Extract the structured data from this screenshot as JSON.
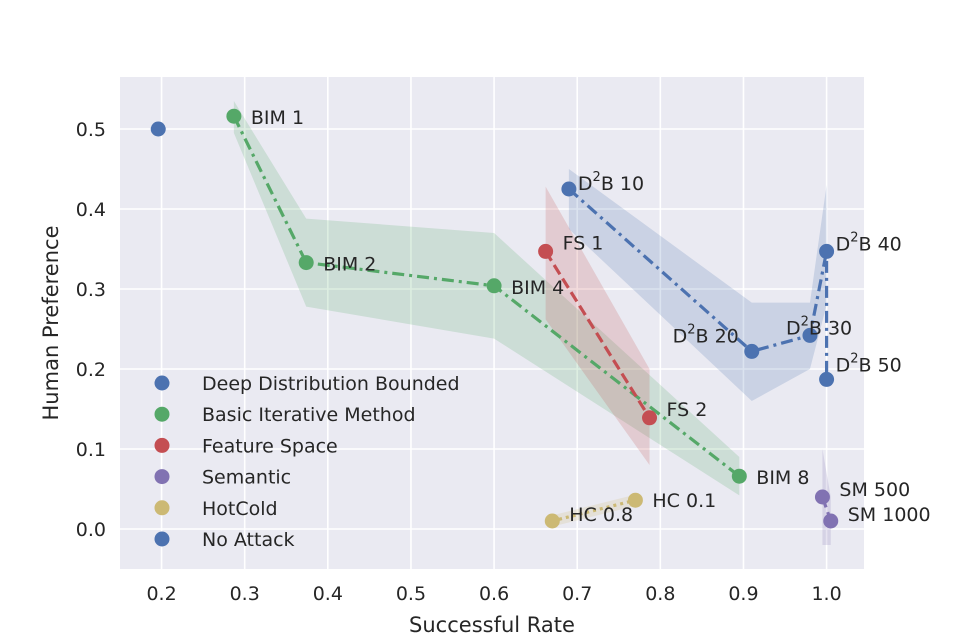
{
  "chart_data": {
    "type": "scatter",
    "title": "",
    "xlabel": "Successful Rate",
    "ylabel": "Human Preference",
    "xlim": [
      0.15,
      1.045
    ],
    "ylim": [
      -0.05,
      0.565
    ],
    "xticks": [
      0.2,
      0.3,
      0.4,
      0.5,
      0.6,
      0.7,
      0.8,
      0.9,
      1.0
    ],
    "xtick_labels": [
      "0.2",
      "0.3",
      "0.4",
      "0.5",
      "0.6",
      "0.7",
      "0.8",
      "0.9",
      "1.0"
    ],
    "yticks": [
      0.0,
      0.1,
      0.2,
      0.3,
      0.4,
      0.5
    ],
    "ytick_labels": [
      "0.0",
      "0.1",
      "0.2",
      "0.3",
      "0.4",
      "0.5"
    ],
    "grid": true,
    "background": "#eaeaf2",
    "legend_position": "lower-left",
    "series": [
      {
        "name": "Deep Distribution Bounded",
        "color": "#4c72b0",
        "linestyle": "dashdot",
        "points": [
          {
            "x": 0.69,
            "y": 0.425,
            "label": "D²B 10",
            "lo": 0.375,
            "hi": 0.45
          },
          {
            "x": 0.91,
            "y": 0.222,
            "label": "D²B 20",
            "lo": 0.16,
            "hi": 0.283
          },
          {
            "x": 0.98,
            "y": 0.242,
            "label": "D²B 30",
            "lo": 0.2,
            "hi": 0.283
          },
          {
            "x": 1.0,
            "y": 0.347,
            "label": "D²B 40",
            "lo": 0.28,
            "hi": 0.43
          },
          {
            "x": 1.0,
            "y": 0.187,
            "label": "D²B 50",
            "lo": 0.14,
            "hi": 0.23
          }
        ]
      },
      {
        "name": "Basic Iterative Method",
        "color": "#55a868",
        "linestyle": "dashdot",
        "points": [
          {
            "x": 0.287,
            "y": 0.516,
            "label": "BIM 1",
            "lo": 0.495,
            "hi": 0.535
          },
          {
            "x": 0.374,
            "y": 0.333,
            "label": "BIM 2",
            "lo": 0.278,
            "hi": 0.388
          },
          {
            "x": 0.6,
            "y": 0.304,
            "label": "BIM 4",
            "lo": 0.238,
            "hi": 0.37
          },
          {
            "x": 0.895,
            "y": 0.066,
            "label": "BIM 8",
            "lo": 0.042,
            "hi": 0.09
          }
        ]
      },
      {
        "name": "Feature Space",
        "color": "#c44e52",
        "linestyle": "dashed",
        "points": [
          {
            "x": 0.662,
            "y": 0.347,
            "label": "FS 1",
            "lo": 0.262,
            "hi": 0.428
          },
          {
            "x": 0.787,
            "y": 0.139,
            "label": "FS 2",
            "lo": 0.08,
            "hi": 0.2
          }
        ]
      },
      {
        "name": "Semantic",
        "color": "#8172b2",
        "linestyle": "dashed",
        "points": [
          {
            "x": 0.995,
            "y": 0.04,
            "label": "SM 500",
            "lo": -0.02,
            "hi": 0.1
          },
          {
            "x": 1.005,
            "y": 0.01,
            "label": "SM 1000",
            "lo": -0.02,
            "hi": 0.04
          }
        ]
      },
      {
        "name": "HotCold",
        "color": "#ccb974",
        "linestyle": "dotted",
        "points": [
          {
            "x": 0.67,
            "y": 0.01,
            "label": "HC 0.8",
            "lo": 0.003,
            "hi": 0.017
          },
          {
            "x": 0.77,
            "y": 0.036,
            "label": "HC 0.1",
            "lo": 0.029,
            "hi": 0.043
          }
        ]
      },
      {
        "name": "No Attack",
        "color": "#4c72b0",
        "linestyle": "none",
        "points": [
          {
            "x": 0.196,
            "y": 0.5,
            "label": ""
          }
        ]
      }
    ]
  }
}
